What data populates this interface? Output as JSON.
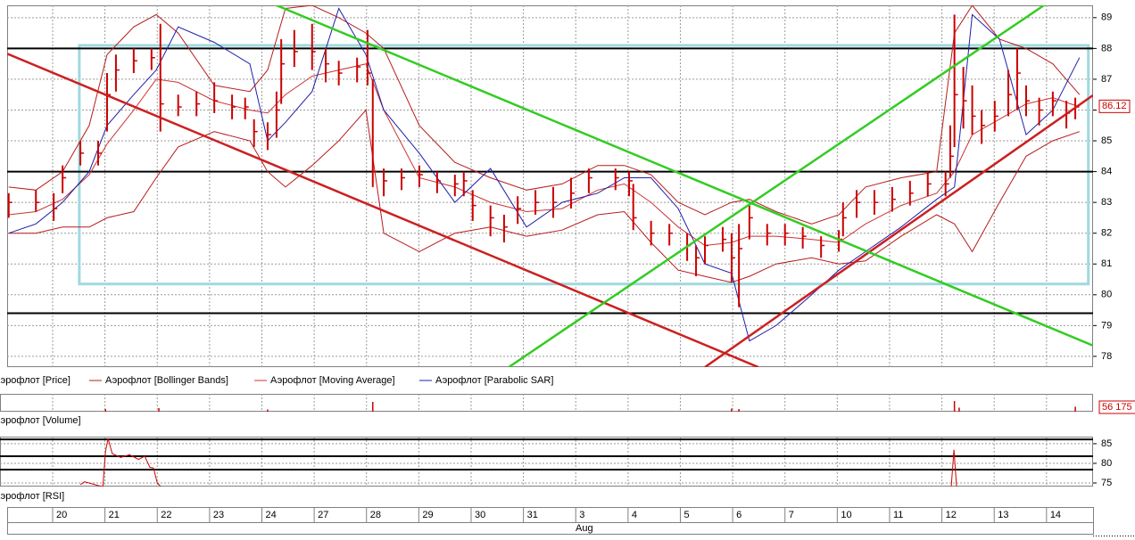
{
  "x_axis": {
    "categories": [
      "20",
      "21",
      "22",
      "23",
      "24",
      "27",
      "28",
      "29",
      "30",
      "31",
      "3",
      "4",
      "5",
      "6",
      "7",
      "10",
      "11",
      "12",
      "13",
      "14"
    ],
    "month_label": "Aug"
  },
  "chart_data": [
    {
      "type": "ohlc",
      "xlim": [
        -0.87,
        19.89
      ],
      "ylim": [
        77.65,
        89.4
      ],
      "yticks": [
        78,
        79,
        80,
        81,
        82,
        83,
        84,
        85,
        86,
        87,
        88,
        89
      ],
      "grid": true,
      "x": [
        -0.84,
        -0.32,
        0.02,
        0.19,
        0.53,
        0.87,
        1.04,
        1.21,
        1.55,
        1.89,
        2.06,
        2.4,
        2.75,
        3.09,
        3.43,
        3.68,
        3.85,
        4.11,
        4.28,
        4.37,
        4.62,
        4.96,
        5.22,
        5.47,
        5.82,
        6.02,
        6.12,
        6.33,
        6.67,
        7.01,
        7.35,
        7.69,
        7.86,
        8.03,
        8.37,
        8.63,
        8.89,
        9.23,
        9.57,
        9.91,
        10.25,
        10.76,
        11.02,
        11.1,
        11.44,
        11.79,
        12.13,
        12.3,
        12.47,
        12.81,
        12.98,
        13.12,
        13.32,
        13.66,
        14.0,
        14.34,
        14.69,
        15.03,
        15.11,
        15.37,
        15.71,
        16.05,
        16.39,
        16.73,
        17.07,
        17.16,
        17.24,
        17.41,
        17.58,
        17.76,
        18.01,
        18.27,
        18.44,
        18.61,
        18.86,
        19.12,
        19.38,
        19.55
      ],
      "series": [
        {
          "name": "Аэрофлот [Price]",
          "color": "#cc0000",
          "high": [
            83.3,
            83.4,
            83.3,
            84.2,
            85.0,
            85.0,
            87.2,
            87.8,
            88.0,
            88.0,
            88.8,
            86.5,
            86.6,
            86.9,
            86.5,
            86.4,
            85.7,
            85.6,
            86.6,
            88.3,
            88.6,
            88.8,
            88.0,
            87.6,
            87.7,
            88.6,
            87.0,
            84.1,
            84.1,
            84.2,
            84.0,
            83.9,
            84.0,
            83.4,
            82.9,
            82.6,
            83.2,
            83.4,
            83.5,
            83.8,
            84.1,
            84.1,
            84.0,
            83.6,
            82.4,
            82.3,
            82.0,
            81.6,
            81.9,
            82.2,
            82.0,
            82.3,
            82.9,
            82.3,
            82.3,
            82.2,
            81.9,
            82.1,
            83.0,
            83.4,
            83.4,
            83.5,
            83.7,
            84.0,
            84.0,
            85.5,
            89.1,
            87.4,
            86.8,
            86.0,
            86.3,
            87.3,
            88.0,
            86.8,
            86.4,
            86.6,
            86.3,
            86.4
          ],
          "low": [
            82.5,
            82.7,
            82.4,
            83.3,
            84.2,
            84.2,
            85.3,
            86.6,
            87.2,
            87.3,
            85.3,
            85.8,
            85.8,
            85.9,
            85.7,
            85.7,
            84.8,
            84.7,
            85.1,
            86.2,
            87.4,
            87.3,
            86.9,
            86.8,
            86.9,
            86.8,
            83.5,
            83.2,
            83.4,
            83.5,
            83.3,
            83.2,
            83.2,
            82.4,
            81.9,
            81.7,
            82.3,
            82.6,
            82.5,
            82.8,
            83.3,
            83.4,
            83.2,
            82.1,
            81.6,
            81.6,
            81.1,
            80.6,
            81.0,
            81.4,
            80.4,
            79.6,
            81.8,
            81.6,
            81.6,
            81.5,
            81.2,
            81.4,
            81.9,
            82.5,
            82.6,
            82.7,
            82.9,
            83.2,
            83.2,
            83.8,
            84.8,
            85.4,
            85.2,
            84.9,
            85.3,
            85.8,
            86.0,
            85.8,
            85.5,
            85.8,
            85.4,
            85.7
          ],
          "close": [
            83.0,
            83.0,
            82.8,
            83.8,
            84.6,
            84.6,
            86.5,
            87.3,
            87.6,
            87.7,
            86.2,
            86.1,
            86.2,
            86.3,
            86.1,
            86.1,
            85.3,
            85.2,
            86.0,
            87.5,
            87.9,
            87.9,
            87.5,
            87.2,
            87.4,
            87.2,
            84.0,
            83.7,
            83.8,
            83.9,
            83.7,
            83.6,
            83.7,
            82.9,
            82.5,
            82.2,
            82.8,
            83.0,
            83.0,
            83.3,
            83.8,
            83.8,
            83.7,
            82.5,
            82.0,
            82.0,
            81.6,
            81.2,
            81.6,
            81.8,
            81.2,
            81.5,
            82.5,
            82.0,
            82.0,
            81.9,
            81.6,
            81.8,
            82.5,
            83.0,
            83.0,
            83.1,
            83.3,
            83.6,
            83.6,
            84.5,
            86.5,
            86.3,
            85.8,
            85.5,
            85.8,
            86.5,
            87.2,
            86.3,
            86.0,
            86.3,
            85.9,
            86.1
          ]
        }
      ],
      "overlay_x": [
        -0.84,
        -0.32,
        0.19,
        0.7,
        1.04,
        1.55,
        1.98,
        2.4,
        3.09,
        3.77,
        4.11,
        4.45,
        4.96,
        5.47,
        5.99,
        6.33,
        7.01,
        7.69,
        8.37,
        9.06,
        9.74,
        10.42,
        10.93,
        11.44,
        11.96,
        12.47,
        12.98,
        13.32,
        13.83,
        14.51,
        15.03,
        15.54,
        16.22,
        16.9,
        17.24,
        17.58,
        18.1,
        18.61,
        19.12,
        19.63
      ],
      "overlays": [
        {
          "name": "Аэрофлот [Bollinger Bands]",
          "color": "#b81c1c",
          "upper": [
            83.5,
            83.4,
            84.0,
            85.5,
            87.8,
            88.7,
            89.1,
            88.5,
            86.8,
            86.6,
            87.3,
            89.3,
            89.4,
            89.0,
            88.5,
            88.0,
            85.5,
            84.3,
            83.8,
            83.4,
            83.6,
            84.2,
            84.2,
            83.9,
            83.0,
            82.6,
            83.0,
            83.1,
            82.7,
            82.3,
            82.6,
            83.5,
            83.8,
            84.0,
            88.5,
            89.4,
            88.3,
            88.0,
            87.5,
            86.5
          ],
          "lower": [
            82.0,
            82.0,
            82.2,
            82.2,
            82.5,
            82.7,
            83.8,
            84.8,
            85.3,
            85.0,
            84.0,
            83.5,
            84.2,
            85.0,
            86.0,
            82.0,
            81.4,
            82.0,
            82.2,
            81.9,
            82.1,
            82.6,
            82.7,
            81.7,
            80.8,
            80.6,
            80.4,
            80.6,
            81.0,
            81.2,
            81.0,
            81.1,
            81.9,
            82.6,
            82.3,
            81.4,
            83.0,
            84.5,
            85.0,
            85.3
          ]
        },
        {
          "name": "Аэрофлот [Moving Average]",
          "color": "#cc3333",
          "values": [
            82.6,
            82.7,
            83.1,
            83.9,
            84.9,
            86.0,
            87.0,
            86.9,
            86.3,
            86.0,
            85.9,
            86.5,
            87.1,
            87.3,
            87.5,
            86.0,
            83.8,
            83.5,
            83.0,
            82.7,
            82.8,
            83.4,
            83.6,
            83.0,
            82.2,
            81.6,
            81.7,
            81.9,
            81.9,
            81.8,
            81.7,
            82.3,
            82.9,
            83.3,
            84.0,
            85.2,
            85.7,
            86.2,
            86.4,
            86.1
          ]
        },
        {
          "name": "Аэрофлот [Parabolic SAR]",
          "color": "#1f1fa8",
          "values": [
            82.0,
            82.3,
            83.0,
            84.0,
            85.5,
            86.5,
            87.3,
            88.7,
            88.2,
            87.5,
            85.0,
            85.6,
            86.6,
            89.3,
            87.8,
            86.0,
            84.6,
            83.0,
            84.1,
            82.2,
            83.0,
            83.3,
            83.8,
            83.8,
            82.8,
            81.0,
            80.7,
            78.5,
            79.0,
            80.0,
            80.8,
            81.4,
            82.2,
            83.1,
            83.5,
            89.1,
            88.3,
            85.2,
            86.0,
            87.7
          ]
        }
      ],
      "horizontal_lines": [
        88,
        84,
        79.4
      ],
      "rectangle": {
        "color": "#9fd9df",
        "x": [
          0.51,
          19.8
        ],
        "y": [
          80.35,
          88.1
        ]
      },
      "trendlines": [
        {
          "color": "#cc2020",
          "x": [
            -0.87,
            13.49
          ],
          "y": [
            87.83,
            77.65
          ]
        },
        {
          "color": "#cc2020",
          "x": [
            12.47,
            19.89
          ],
          "y": [
            77.65,
            86.48
          ]
        },
        {
          "color": "#33cc22",
          "x": [
            4.28,
            19.89
          ],
          "y": [
            89.4,
            78.35
          ]
        },
        {
          "color": "#33cc22",
          "x": [
            8.72,
            18.95
          ],
          "y": [
            77.65,
            89.4
          ]
        }
      ],
      "last_value": 86.12
    },
    {
      "type": "volume",
      "xlim": [
        -0.87,
        19.89
      ],
      "ylim": [
        0,
        200000
      ],
      "series": [
        {
          "name": "Аэрофлот [Volume]",
          "color": "#cc0000",
          "x": [
            1.01,
            2.03,
            4.11,
            6.12,
            12.98,
            13.12,
            17.24,
            17.33,
            19.55
          ],
          "values": [
            30000,
            40000,
            25000,
            110000,
            35000,
            30000,
            120000,
            45000,
            56175
          ]
        }
      ],
      "last_value": {
        "value": 56175,
        "label": "56 175"
      }
    },
    {
      "type": "rsi",
      "xlim": [
        -0.87,
        19.89
      ],
      "ylim": [
        74.1,
        86.8
      ],
      "yticks": [
        75,
        80,
        85
      ],
      "grid": true,
      "levels": [
        86.1,
        81.8,
        78.4
      ],
      "series": [
        {
          "name": "Аэрофлот [RSI]",
          "color": "#cc0000",
          "x": [
            0.53,
            0.61,
            0.96,
            1.01,
            1.06,
            1.14,
            1.3,
            1.47,
            1.64,
            1.76,
            1.86,
            1.93,
            2.0,
            2.06,
            null,
            17.18,
            17.23,
            17.28
          ],
          "values": [
            74.6,
            75.3,
            74.0,
            83.0,
            86.3,
            82.5,
            81.5,
            82.2,
            81.0,
            81.8,
            79.0,
            78.8,
            75.0,
            74.2,
            null,
            74.2,
            83.5,
            74.2
          ]
        }
      ]
    }
  ]
}
